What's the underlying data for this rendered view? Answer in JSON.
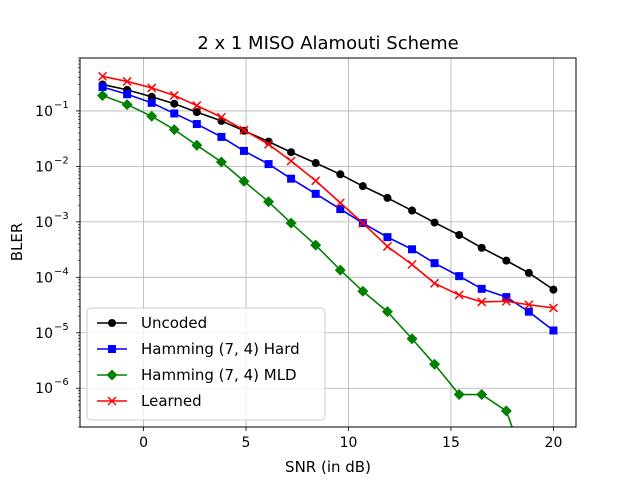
{
  "chart_data": {
    "type": "line",
    "title": "2 x 1 MISO Alamouti Scheme",
    "xlabel": "SNR (in dB)",
    "ylabel": "BLER",
    "xlim": [
      -3.1,
      21.1
    ],
    "ylim": [
      2e-07,
      0.9
    ],
    "yscale": "log",
    "grid": true,
    "legend_position": "lower-left",
    "x_ticks": [
      0,
      5,
      10,
      15,
      20
    ],
    "x_tick_labels": [
      "0",
      "5",
      "10",
      "15",
      "20"
    ],
    "y_tick_exponents": [
      -6,
      -5,
      -4,
      -3,
      -2,
      -1
    ],
    "y_tick_labels": [
      "10",
      "10",
      "10",
      "10",
      "10",
      "10"
    ],
    "y_tick_superscripts": [
      "−6",
      "−5",
      "−4",
      "−3",
      "−2",
      "−1"
    ],
    "series": [
      {
        "name": "Uncoded",
        "color": "#000000",
        "marker": "circle",
        "x": [
          -2,
          -0.8,
          0.4,
          1.5,
          2.6,
          3.8,
          4.9,
          6.1,
          7.2,
          8.4,
          9.6,
          10.7,
          11.9,
          13.1,
          14.2,
          15.4,
          16.5,
          17.7,
          18.8,
          20
        ],
        "y": [
          0.3,
          0.24,
          0.18,
          0.135,
          0.095,
          0.066,
          0.044,
          0.028,
          0.018,
          0.0115,
          0.0072,
          0.0044,
          0.0027,
          0.0016,
          0.00097,
          0.00058,
          0.00034,
          0.0002,
          0.00012,
          6e-05
        ]
      },
      {
        "name": "Hamming (7, 4) Hard",
        "color": "#0000ff",
        "marker": "square",
        "x": [
          -2,
          -0.8,
          0.4,
          1.5,
          2.6,
          3.8,
          4.9,
          6.1,
          7.2,
          8.4,
          9.6,
          10.7,
          11.9,
          13.1,
          14.2,
          15.4,
          16.5,
          17.7,
          18.8,
          20
        ],
        "y": [
          0.27,
          0.2,
          0.14,
          0.09,
          0.058,
          0.034,
          0.019,
          0.011,
          0.006,
          0.0032,
          0.0017,
          0.00095,
          0.00053,
          0.00032,
          0.00018,
          0.000105,
          6.2e-05,
          4.4e-05,
          2.4e-05,
          1.1e-05
        ]
      },
      {
        "name": "Hamming (7, 4) MLD",
        "color": "#008000",
        "marker": "diamond",
        "x": [
          -2,
          -0.8,
          0.4,
          1.5,
          2.6,
          3.8,
          4.9,
          6.1,
          7.2,
          8.4,
          9.6,
          10.7,
          11.9,
          13.1,
          14.2,
          15.4,
          16.5,
          17.7,
          18.2
        ],
        "y": [
          0.19,
          0.13,
          0.08,
          0.046,
          0.024,
          0.012,
          0.0054,
          0.0023,
          0.00095,
          0.00038,
          0.000135,
          5.6e-05,
          2.4e-05,
          7.8e-06,
          2.7e-06,
          7.7e-07,
          7.7e-07,
          3.9e-07,
          1.2e-07
        ]
      },
      {
        "name": "Learned",
        "color": "#ff0000",
        "marker": "x",
        "x": [
          -2,
          -0.8,
          0.4,
          1.5,
          2.6,
          3.8,
          4.9,
          6.1,
          7.2,
          8.4,
          9.6,
          10.7,
          11.9,
          13.1,
          14.2,
          15.4,
          16.5,
          17.7,
          18.8,
          20
        ],
        "y": [
          0.42,
          0.34,
          0.26,
          0.19,
          0.125,
          0.077,
          0.045,
          0.025,
          0.0125,
          0.0055,
          0.0022,
          0.00095,
          0.00036,
          0.00017,
          7.8e-05,
          4.8e-05,
          3.6e-05,
          3.7e-05,
          3.2e-05,
          2.8e-05
        ]
      }
    ]
  }
}
